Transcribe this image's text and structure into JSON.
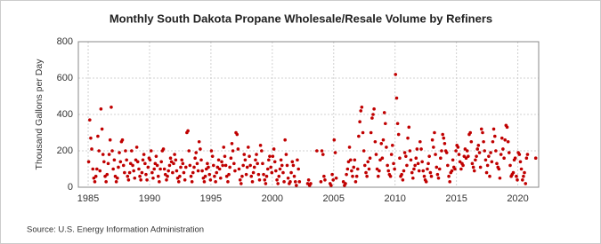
{
  "chart_data": {
    "type": "scatter",
    "title": "Monthly South Dakota Propane Wholesale/Resale Volume by Refiners",
    "y_label": "Thousand Gallons per Day",
    "source": "Source: U.S. Energy Information Administration",
    "color": "#c00000",
    "grid": true,
    "xlim": [
      1984.2,
      2021.7
    ],
    "xticks": [
      1985,
      1990,
      1995,
      2000,
      2005,
      2010,
      2015,
      2020
    ],
    "ylim": [
      0,
      800
    ],
    "yticks": [
      0,
      200,
      400,
      600,
      800
    ],
    "x": [
      1985.04,
      1985.13,
      1985.21,
      1985.29,
      1985.38,
      1985.46,
      1985.54,
      1985.63,
      1985.71,
      1985.79,
      1985.88,
      1985.96,
      1986.04,
      1986.13,
      1986.21,
      1986.29,
      1986.38,
      1986.46,
      1986.54,
      1986.63,
      1986.71,
      1986.79,
      1986.88,
      1986.96,
      1987.04,
      1987.13,
      1987.21,
      1987.29,
      1987.38,
      1987.46,
      1987.54,
      1987.63,
      1987.71,
      1987.79,
      1987.88,
      1987.96,
      1988.04,
      1988.13,
      1988.21,
      1988.29,
      1988.38,
      1988.46,
      1988.54,
      1988.63,
      1988.71,
      1988.79,
      1988.88,
      1988.96,
      1989.04,
      1989.13,
      1989.21,
      1989.29,
      1989.38,
      1989.46,
      1989.54,
      1989.63,
      1989.71,
      1989.79,
      1989.88,
      1989.96,
      1990.04,
      1990.13,
      1990.21,
      1990.29,
      1990.38,
      1990.46,
      1990.54,
      1990.63,
      1990.71,
      1990.79,
      1990.88,
      1990.96,
      1991.04,
      1991.13,
      1991.21,
      1991.29,
      1991.38,
      1991.46,
      1991.54,
      1991.63,
      1991.71,
      1991.79,
      1991.88,
      1991.96,
      1992.04,
      1992.13,
      1992.21,
      1992.29,
      1992.38,
      1992.46,
      1992.54,
      1992.63,
      1992.71,
      1992.79,
      1992.88,
      1992.96,
      1993.04,
      1993.13,
      1993.21,
      1993.29,
      1993.38,
      1993.46,
      1993.54,
      1993.63,
      1993.71,
      1993.79,
      1993.88,
      1993.96,
      1994.04,
      1994.13,
      1994.21,
      1994.29,
      1994.38,
      1994.46,
      1994.54,
      1994.63,
      1994.71,
      1994.79,
      1994.88,
      1994.96,
      1995.04,
      1995.13,
      1995.21,
      1995.29,
      1995.38,
      1995.46,
      1995.54,
      1995.63,
      1995.71,
      1995.79,
      1995.88,
      1995.96,
      1996.04,
      1996.13,
      1996.21,
      1996.29,
      1996.38,
      1996.46,
      1996.54,
      1996.63,
      1996.71,
      1996.79,
      1996.88,
      1996.96,
      1997.04,
      1997.13,
      1997.21,
      1997.29,
      1997.38,
      1997.46,
      1997.54,
      1997.63,
      1997.71,
      1997.79,
      1997.88,
      1997.96,
      1998.04,
      1998.13,
      1998.21,
      1998.29,
      1998.38,
      1998.46,
      1998.54,
      1998.63,
      1998.71,
      1998.79,
      1998.88,
      1998.96,
      1999.04,
      1999.13,
      1999.21,
      1999.29,
      1999.38,
      1999.46,
      1999.54,
      1999.63,
      1999.71,
      1999.79,
      1999.88,
      1999.96,
      2000.04,
      2000.13,
      2000.21,
      2000.29,
      2000.38,
      2000.46,
      2000.54,
      2000.63,
      2000.71,
      2000.79,
      2000.88,
      2000.96,
      2001.04,
      2001.13,
      2001.21,
      2001.29,
      2001.38,
      2001.46,
      2001.54,
      2001.63,
      2001.71,
      2001.79,
      2001.88,
      2001.96,
      2002.04,
      2002.13,
      2002.21,
      2002.88,
      2002.96,
      2003.04,
      2003.13,
      2003.63,
      2003.96,
      2004.04,
      2004.13,
      2004.21,
      2004.29,
      2004.71,
      2004.79,
      2004.88,
      2004.96,
      2005.04,
      2005.13,
      2005.21,
      2005.79,
      2005.88,
      2005.96,
      2006.04,
      2006.13,
      2006.21,
      2006.29,
      2006.38,
      2006.46,
      2006.54,
      2006.63,
      2006.71,
      2006.79,
      2006.88,
      2006.96,
      2007.04,
      2007.13,
      2007.21,
      2007.29,
      2007.38,
      2007.46,
      2007.54,
      2007.63,
      2007.71,
      2007.79,
      2007.88,
      2007.96,
      2008.04,
      2008.13,
      2008.21,
      2008.29,
      2008.38,
      2008.46,
      2008.54,
      2008.63,
      2008.71,
      2008.79,
      2008.88,
      2008.96,
      2009.04,
      2009.13,
      2009.21,
      2009.29,
      2009.38,
      2009.46,
      2009.54,
      2009.63,
      2009.71,
      2009.79,
      2009.88,
      2009.96,
      2010.04,
      2010.13,
      2010.21,
      2010.29,
      2010.38,
      2010.46,
      2010.54,
      2010.63,
      2010.71,
      2010.79,
      2010.88,
      2010.96,
      2011.04,
      2011.13,
      2011.21,
      2011.29,
      2011.38,
      2011.46,
      2011.54,
      2011.63,
      2011.71,
      2011.79,
      2011.88,
      2011.96,
      2012.04,
      2012.13,
      2012.21,
      2012.29,
      2012.38,
      2012.46,
      2012.54,
      2012.63,
      2012.71,
      2012.79,
      2012.88,
      2012.96,
      2013.04,
      2013.13,
      2013.21,
      2013.29,
      2013.38,
      2013.46,
      2013.54,
      2013.63,
      2013.71,
      2013.79,
      2013.88,
      2013.96,
      2014.04,
      2014.13,
      2014.21,
      2014.29,
      2014.38,
      2014.46,
      2014.54,
      2014.63,
      2014.71,
      2014.79,
      2014.88,
      2014.96,
      2015.04,
      2015.13,
      2015.21,
      2015.29,
      2015.38,
      2015.46,
      2015.54,
      2015.63,
      2015.71,
      2015.79,
      2015.88,
      2015.96,
      2016.04,
      2016.13,
      2016.21,
      2016.29,
      2016.38,
      2016.46,
      2016.54,
      2016.63,
      2016.71,
      2016.79,
      2016.88,
      2016.96,
      2017.04,
      2017.13,
      2017.21,
      2017.29,
      2017.38,
      2017.46,
      2017.54,
      2017.63,
      2017.71,
      2017.79,
      2017.88,
      2017.96,
      2018.04,
      2018.13,
      2018.21,
      2018.29,
      2018.38,
      2018.46,
      2018.54,
      2018.63,
      2018.71,
      2018.79,
      2018.88,
      2018.96,
      2019.04,
      2019.13,
      2019.21,
      2019.29,
      2019.38,
      2019.46,
      2019.54,
      2019.63,
      2019.71,
      2019.79,
      2019.88,
      2019.96,
      2020.04,
      2020.13,
      2020.21,
      2020.29,
      2020.38,
      2020.46,
      2020.54,
      2020.63,
      2020.71,
      2020.79,
      2021.46
    ],
    "values": [
      140,
      370,
      270,
      210,
      100,
      50,
      30,
      60,
      100,
      280,
      200,
      90,
      430,
      320,
      180,
      140,
      60,
      30,
      70,
      130,
      180,
      260,
      440,
      200,
      100,
      150,
      60,
      30,
      50,
      110,
      190,
      140,
      250,
      260,
      120,
      80,
      200,
      150,
      60,
      40,
      80,
      130,
      200,
      120,
      90,
      50,
      150,
      220,
      140,
      100,
      60,
      40,
      80,
      150,
      180,
      130,
      70,
      40,
      110,
      160,
      150,
      200,
      80,
      50,
      100,
      130,
      170,
      120,
      60,
      30,
      100,
      140,
      200,
      210,
      100,
      70,
      40,
      60,
      90,
      120,
      160,
      140,
      80,
      130,
      180,
      150,
      90,
      50,
      30,
      60,
      110,
      150,
      130,
      80,
      40,
      110,
      300,
      310,
      200,
      120,
      60,
      30,
      80,
      110,
      160,
      190,
      130,
      90,
      250,
      210,
      150,
      90,
      50,
      30,
      60,
      100,
      130,
      110,
      70,
      40,
      200,
      170,
      120,
      60,
      30,
      80,
      110,
      150,
      100,
      50,
      140,
      120,
      220,
      170,
      120,
      60,
      30,
      70,
      110,
      160,
      240,
      200,
      130,
      90,
      300,
      290,
      210,
      100,
      40,
      20,
      60,
      120,
      180,
      150,
      70,
      110,
      220,
      170,
      120,
      60,
      30,
      80,
      110,
      150,
      180,
      130,
      70,
      40,
      230,
      200,
      130,
      70,
      40,
      20,
      60,
      100,
      150,
      170,
      110,
      80,
      170,
      210,
      140,
      90,
      40,
      20,
      60,
      100,
      150,
      120,
      80,
      30,
      260,
      180,
      120,
      50,
      20,
      30,
      80,
      140,
      120,
      60,
      30,
      10,
      150,
      100,
      30,
      20,
      40,
      10,
      20,
      200,
      30,
      200,
      180,
      60,
      40,
      20,
      10,
      70,
      40,
      260,
      190,
      50,
      30,
      10,
      20,
      70,
      100,
      140,
      220,
      150,
      90,
      60,
      110,
      150,
      30,
      60,
      100,
      280,
      360,
      420,
      440,
      300,
      200,
      120,
      80,
      60,
      140,
      100,
      160,
      300,
      380,
      400,
      430,
      250,
      180,
      100,
      60,
      90,
      150,
      240,
      160,
      260,
      410,
      350,
      220,
      120,
      90,
      70,
      60,
      180,
      230,
      130,
      100,
      620,
      490,
      350,
      290,
      160,
      60,
      70,
      40,
      90,
      190,
      170,
      120,
      270,
      330,
      200,
      150,
      80,
      50,
      100,
      120,
      160,
      210,
      130,
      90,
      250,
      210,
      140,
      90,
      60,
      40,
      30,
      100,
      130,
      170,
      80,
      60,
      260,
      220,
      300,
      180,
      110,
      70,
      50,
      100,
      160,
      200,
      290,
      270,
      240,
      200,
      190,
      120,
      60,
      30,
      80,
      90,
      150,
      110,
      100,
      200,
      230,
      220,
      180,
      140,
      100,
      130,
      120,
      170,
      210,
      160,
      200,
      170,
      290,
      300,
      250,
      130,
      110,
      90,
      150,
      170,
      210,
      230,
      190,
      110,
      320,
      300,
      250,
      200,
      150,
      80,
      120,
      170,
      60,
      190,
      140,
      250,
      320,
      280,
      200,
      130,
      110,
      100,
      50,
      180,
      270,
      210,
      160,
      260,
      340,
      330,
      250,
      190,
      120,
      60,
      70,
      80,
      150,
      160,
      60,
      40,
      190,
      180,
      140,
      100,
      40,
      60,
      80,
      20,
      160,
      180,
      160
    ]
  }
}
